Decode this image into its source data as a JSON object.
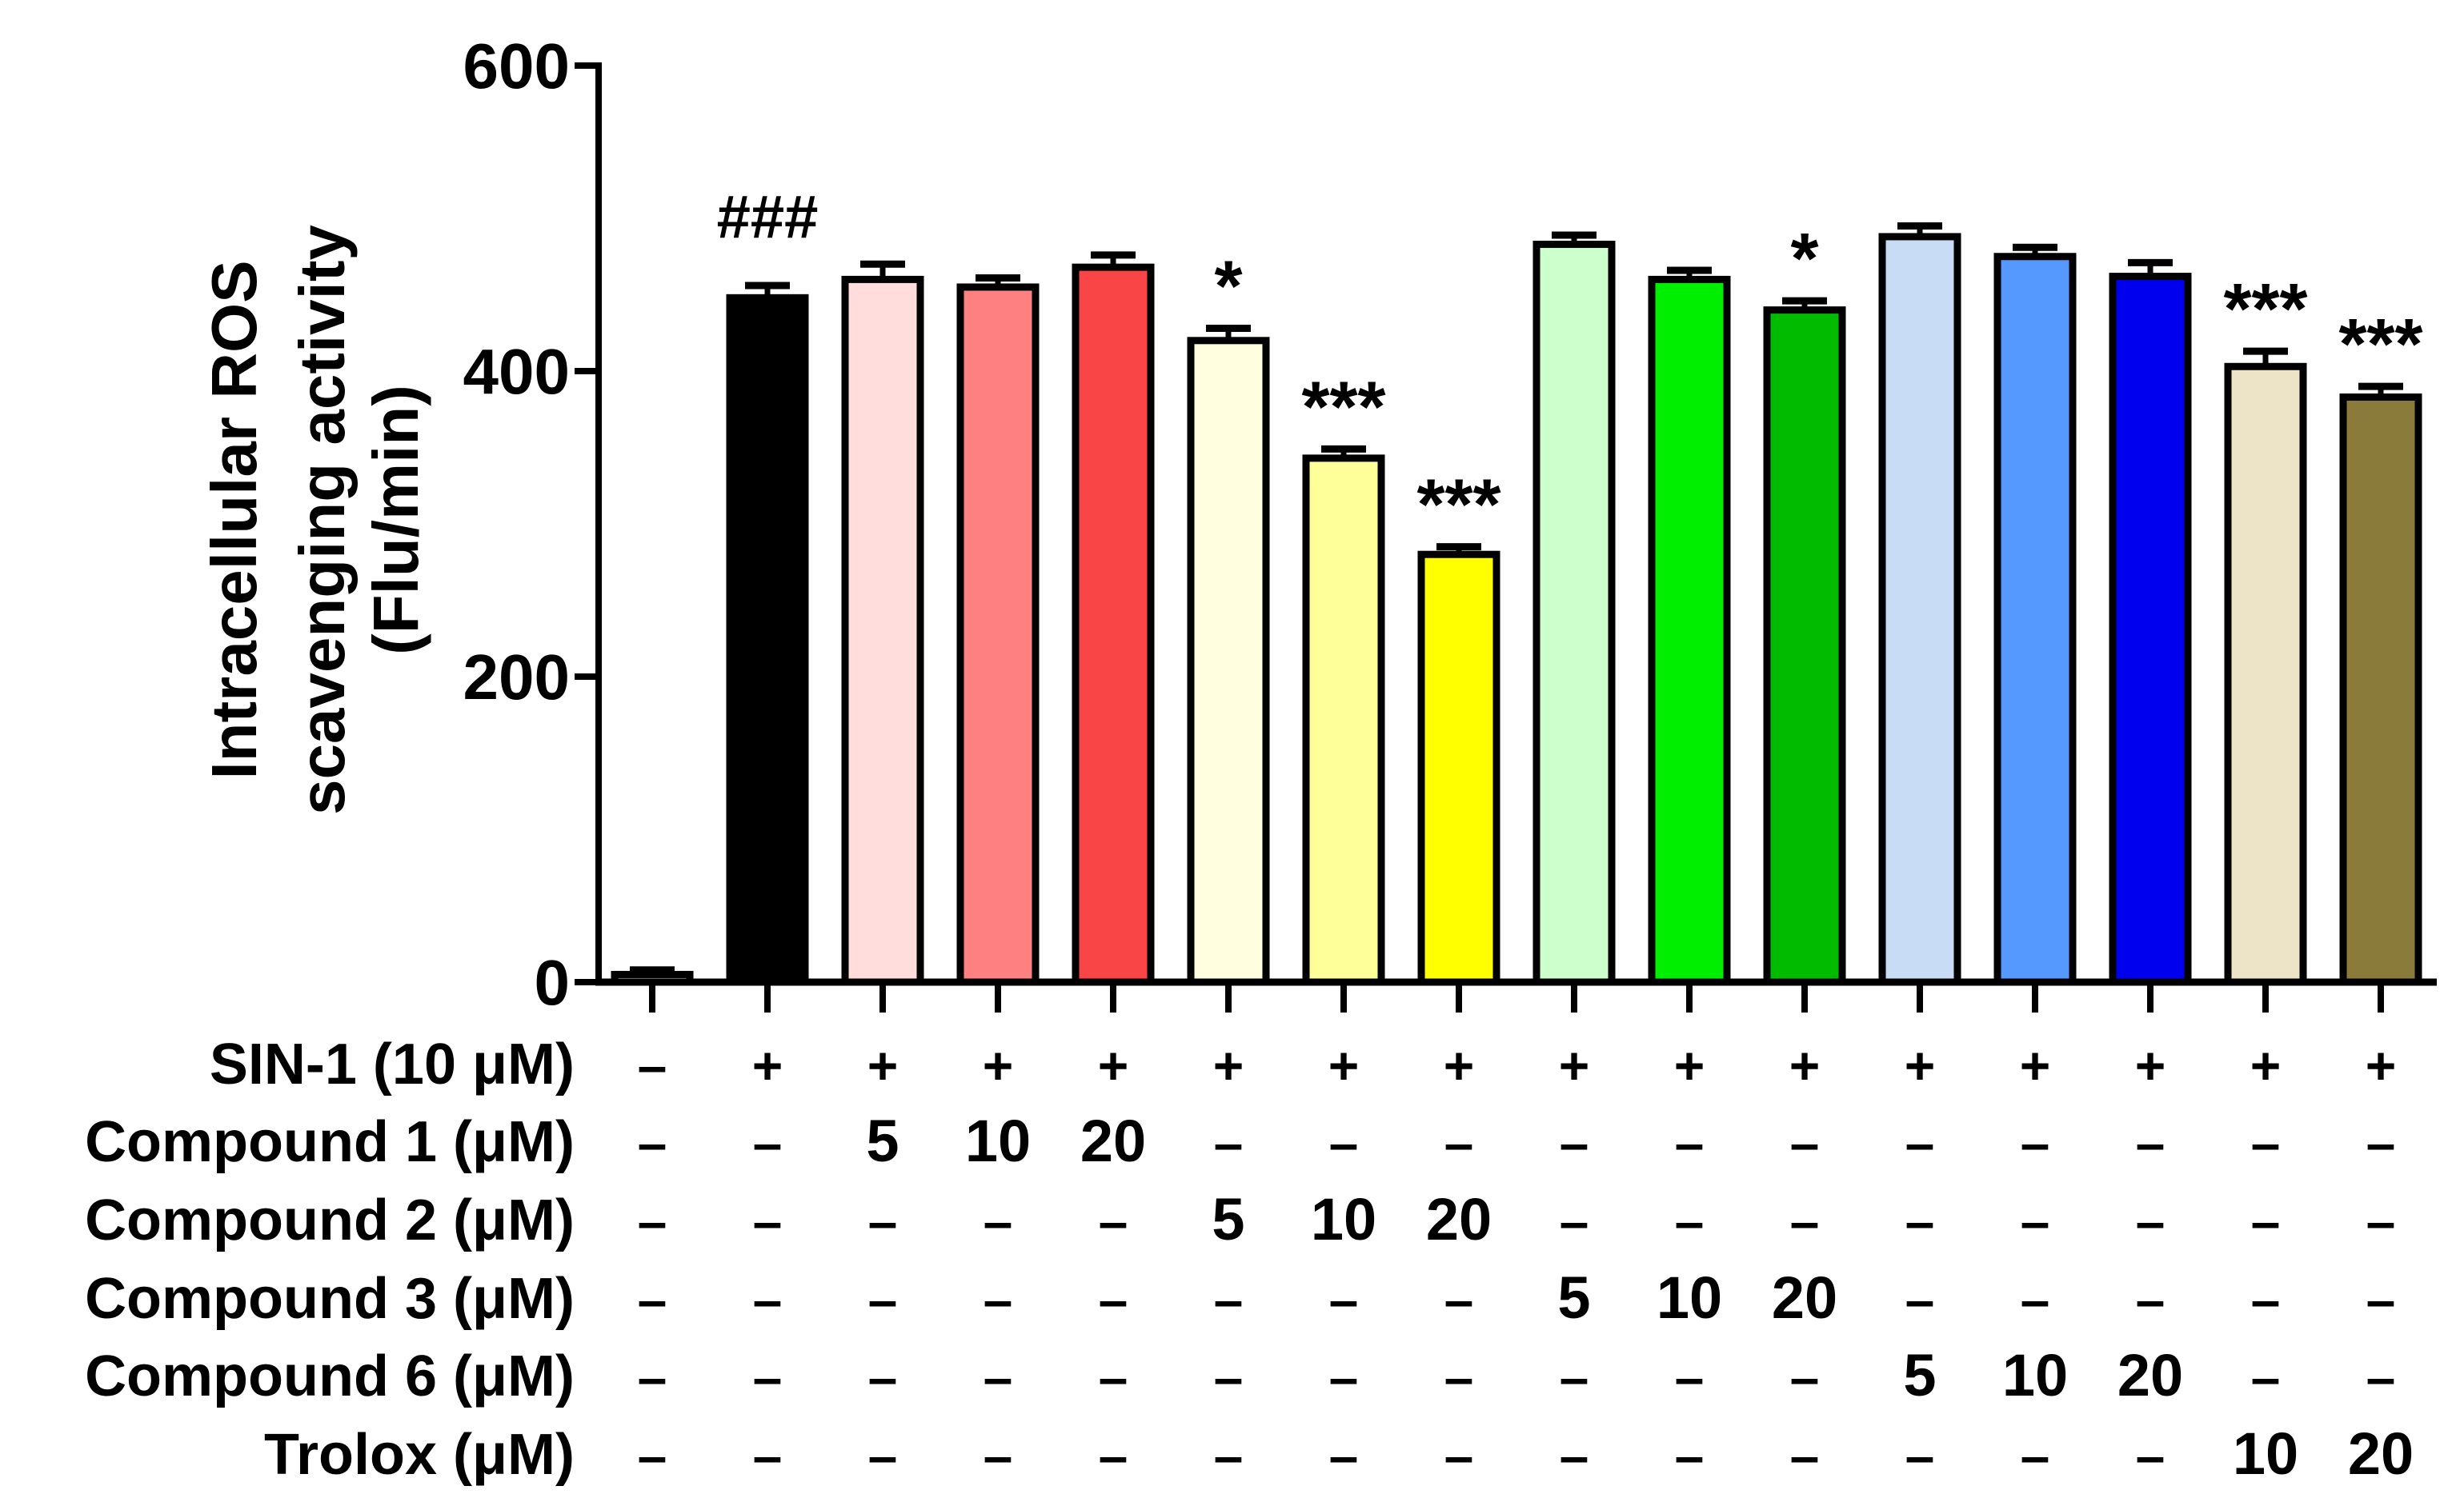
{
  "chart_data": {
    "type": "bar",
    "ylabel_lines": [
      "Intracellular ROS",
      "scavenging activity",
      "(Flu/min)"
    ],
    "ylim": [
      0,
      600
    ],
    "yticks": [
      0,
      200,
      400,
      600
    ],
    "values": [
      5,
      448,
      460,
      455,
      468,
      420,
      343,
      280,
      483,
      460,
      440,
      488,
      475,
      462,
      403,
      383
    ],
    "errors": [
      3,
      8,
      10,
      6,
      8,
      8,
      6,
      5,
      6,
      6,
      6,
      7,
      6,
      9,
      10,
      7
    ],
    "colors": [
      "#cccccc",
      "#000000",
      "#ffdddd",
      "#ff8080",
      "#f94545",
      "#ffffe0",
      "#ffff99",
      "#ffff00",
      "#ccffcc",
      "#00ee00",
      "#00bb00",
      "#c8dcf5",
      "#5599ff",
      "#0000ee",
      "#ede4c8",
      "#8b7b3a"
    ],
    "annotations": [
      "",
      "###",
      "",
      "",
      "",
      "*",
      "***",
      "***",
      "",
      "",
      "*",
      "",
      "",
      "",
      "***",
      "***"
    ],
    "treatment_rows": [
      {
        "label": "SIN-1 (10 μM)",
        "cells": [
          "–",
          "+",
          "+",
          "+",
          "+",
          "+",
          "+",
          "+",
          "+",
          "+",
          "+",
          "+",
          "+",
          "+",
          "+",
          "+"
        ]
      },
      {
        "label": "Compound 1 (μM)",
        "cells": [
          "–",
          "–",
          "5",
          "10",
          "20",
          "–",
          "–",
          "–",
          "–",
          "–",
          "–",
          "–",
          "–",
          "–",
          "–",
          "–"
        ]
      },
      {
        "label": "Compound 2 (μM)",
        "cells": [
          "–",
          "–",
          "–",
          "–",
          "–",
          "5",
          "10",
          "20",
          "–",
          "–",
          "–",
          "–",
          "–",
          "–",
          "–",
          "–"
        ]
      },
      {
        "label": "Compound 3 (μM)",
        "cells": [
          "–",
          "–",
          "–",
          "–",
          "–",
          "–",
          "–",
          "–",
          "5",
          "10",
          "20",
          "–",
          "–",
          "–",
          "–",
          "–"
        ]
      },
      {
        "label": "Compound 6 (μM)",
        "cells": [
          "–",
          "–",
          "–",
          "–",
          "–",
          "–",
          "–",
          "–",
          "–",
          "–",
          "–",
          "5",
          "10",
          "20",
          "–",
          "–"
        ]
      },
      {
        "label": "Trolox (μM)",
        "cells": [
          "–",
          "–",
          "–",
          "–",
          "–",
          "–",
          "–",
          "–",
          "–",
          "–",
          "–",
          "–",
          "–",
          "–",
          "10",
          "20"
        ]
      }
    ]
  }
}
